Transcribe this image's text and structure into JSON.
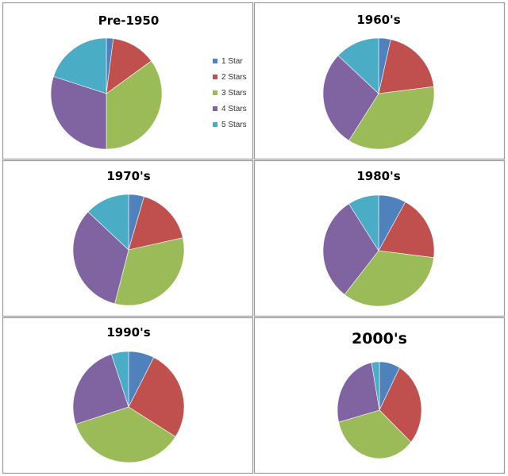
{
  "chart_data": [
    {
      "type": "pie",
      "title": "Pre-1950",
      "categories": [
        "1 Star",
        "2 Stars",
        "3 Stars",
        "4 Stars",
        "5 Stars"
      ],
      "values": [
        2,
        13,
        35,
        30,
        20
      ]
    },
    {
      "type": "pie",
      "title": "1960's",
      "categories": [
        "1 Star",
        "2 Stars",
        "3 Stars",
        "4 Stars",
        "5 Stars"
      ],
      "values": [
        3.5,
        19.5,
        36,
        28,
        13
      ]
    },
    {
      "type": "pie",
      "title": "1970's",
      "categories": [
        "1 Star",
        "2 Stars",
        "3 Stars",
        "4 Stars",
        "5 Stars"
      ],
      "values": [
        4.5,
        17,
        32.5,
        33,
        13
      ]
    },
    {
      "type": "pie",
      "title": "1980's",
      "categories": [
        "1 Star",
        "2 Stars",
        "3 Stars",
        "4 Stars",
        "5 Stars"
      ],
      "values": [
        8,
        19,
        33.5,
        30.5,
        9
      ]
    },
    {
      "type": "pie",
      "title": "1990's",
      "categories": [
        "1 Star",
        "2 Stars",
        "3 Stars",
        "4 Stars",
        "5 Stars"
      ],
      "values": [
        7.5,
        26.5,
        36,
        25,
        5
      ]
    },
    {
      "type": "pie",
      "title": "2000's",
      "categories": [
        "1 Star",
        "2 Stars",
        "3 Stars",
        "4 Stars",
        "5 Stars"
      ],
      "values": [
        8,
        28.5,
        34.5,
        26,
        3
      ]
    }
  ],
  "legend": {
    "placement": "right of Pre-1950 chart",
    "items": [
      "1 Star",
      "2 Stars",
      "3 Stars",
      "4 Stars",
      "5 Stars"
    ]
  },
  "colors": [
    "#4F81BD",
    "#C0504D",
    "#9BBB59",
    "#8064A2",
    "#4BACC6"
  ]
}
